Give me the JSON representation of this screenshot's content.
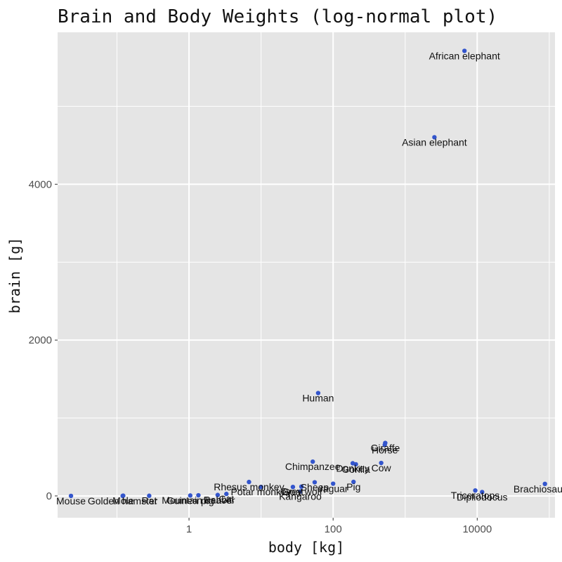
{
  "chart_data": {
    "type": "scatter",
    "title": "Brain and Body Weights (log-normal plot)",
    "xlabel": "body [kg]",
    "ylabel": "brain [g]",
    "x_scale": "log10",
    "xlim": [
      0.015,
      120000
    ],
    "ylim": [
      -280,
      5950
    ],
    "x_ticks": [
      1,
      100,
      10000
    ],
    "x_tick_labels": [
      "1",
      "100",
      "10000"
    ],
    "y_ticks": [
      0,
      2000,
      4000
    ],
    "y_tick_labels": [
      "0",
      "2000",
      "4000"
    ],
    "grid": true,
    "point_color": "#3355cc",
    "panel_color": "#e5e5e5",
    "grid_color": "#ffffff",
    "points": [
      {
        "label": "Mountain beaver",
        "x": 1.35,
        "y": 8.1
      },
      {
        "label": "Cow",
        "x": 465,
        "y": 423
      },
      {
        "label": "Grey wolf",
        "x": 36.33,
        "y": 119.5
      },
      {
        "label": "Goat",
        "x": 27.66,
        "y": 115
      },
      {
        "label": "Guinea pig",
        "x": 1.04,
        "y": 5.5
      },
      {
        "label": "Dipliodocus",
        "x": 11700,
        "y": 50
      },
      {
        "label": "Asian elephant",
        "x": 2547,
        "y": 4603
      },
      {
        "label": "Donkey",
        "x": 187.1,
        "y": 419
      },
      {
        "label": "Horse",
        "x": 521,
        "y": 655
      },
      {
        "label": "Potar monkey",
        "x": 10,
        "y": 115
      },
      {
        "label": "Cat",
        "x": 3.3,
        "y": 25.6
      },
      {
        "label": "Giraffe",
        "x": 529,
        "y": 680
      },
      {
        "label": "Gorilla",
        "x": 207,
        "y": 406
      },
      {
        "label": "Human",
        "x": 62,
        "y": 1320
      },
      {
        "label": "African elephant",
        "x": 6654,
        "y": 5712
      },
      {
        "label": "Triceratops",
        "x": 9400,
        "y": 70
      },
      {
        "label": "Rhesus monkey",
        "x": 6.8,
        "y": 179
      },
      {
        "label": "Kangaroo",
        "x": 35,
        "y": 56
      },
      {
        "label": "Golden hamster",
        "x": 0.12,
        "y": 1
      },
      {
        "label": "Mouse",
        "x": 0.023,
        "y": 0.4
      },
      {
        "label": "Rabbit",
        "x": 2.5,
        "y": 12.1
      },
      {
        "label": "Sheep",
        "x": 55.5,
        "y": 175
      },
      {
        "label": "Jaguar",
        "x": 100,
        "y": 157
      },
      {
        "label": "Chimpanzee",
        "x": 52.16,
        "y": 440
      },
      {
        "label": "Rat",
        "x": 0.28,
        "y": 1.9
      },
      {
        "label": "Brachiosaurus",
        "x": 87000,
        "y": 154.5
      },
      {
        "label": "Mole",
        "x": 0.122,
        "y": 3
      },
      {
        "label": "Pig",
        "x": 192,
        "y": 180
      }
    ]
  }
}
